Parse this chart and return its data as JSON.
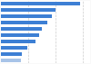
{
  "values": [
    58.0,
    40.0,
    37.0,
    33.5,
    30.0,
    28.0,
    25.5,
    19.0,
    15.5,
    14.5
  ],
  "bar_color": "#3d7fd4",
  "last_bar_color": "#a8c4e8",
  "background_color": "#f9f9f9",
  "plot_bg_color": "#ffffff",
  "xlim": [
    0,
    65
  ],
  "figsize": [
    1.0,
    0.71
  ],
  "dpi": 100,
  "grid_lines": [
    20,
    40,
    60
  ],
  "bar_height": 0.65
}
